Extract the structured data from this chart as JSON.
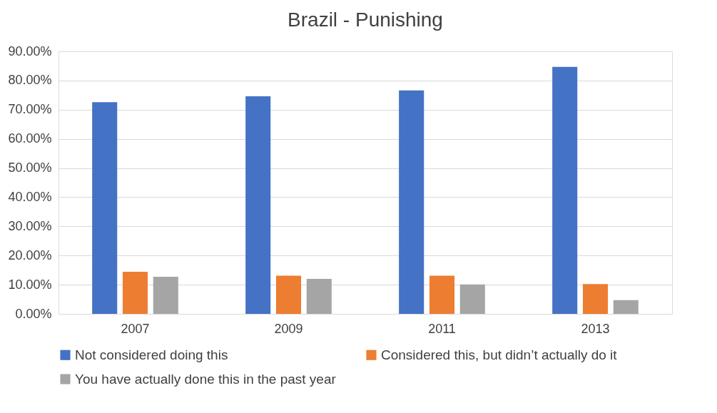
{
  "chart_data": {
    "type": "bar",
    "title": "Brazil - Punishing",
    "categories": [
      "2007",
      "2009",
      "2011",
      "2013"
    ],
    "series": [
      {
        "name": "Not considered doing this",
        "color": "#4472c4",
        "values": [
          72.6,
          74.6,
          76.6,
          84.7
        ]
      },
      {
        "name": "Considered this, but didn’t actually do it",
        "color": "#ed7d31",
        "values": [
          14.4,
          13.1,
          13.1,
          10.2
        ]
      },
      {
        "name": "You have actually done this in the past year",
        "color": "#a5a5a5",
        "values": [
          12.7,
          12.0,
          10.1,
          4.7
        ]
      }
    ],
    "ylim": [
      0,
      90
    ],
    "yticks": [
      {
        "value": 0,
        "label": "0.00%"
      },
      {
        "value": 10,
        "label": "10.00%"
      },
      {
        "value": 20,
        "label": "20.00%"
      },
      {
        "value": 30,
        "label": "30.00%"
      },
      {
        "value": 40,
        "label": "40.00%"
      },
      {
        "value": 50,
        "label": "50.00%"
      },
      {
        "value": 60,
        "label": "60.00%"
      },
      {
        "value": 70,
        "label": "70.00%"
      },
      {
        "value": 80,
        "label": "80.00%"
      },
      {
        "value": 90,
        "label": "90.00%"
      }
    ],
    "grid": "y",
    "legend": "bottom"
  }
}
